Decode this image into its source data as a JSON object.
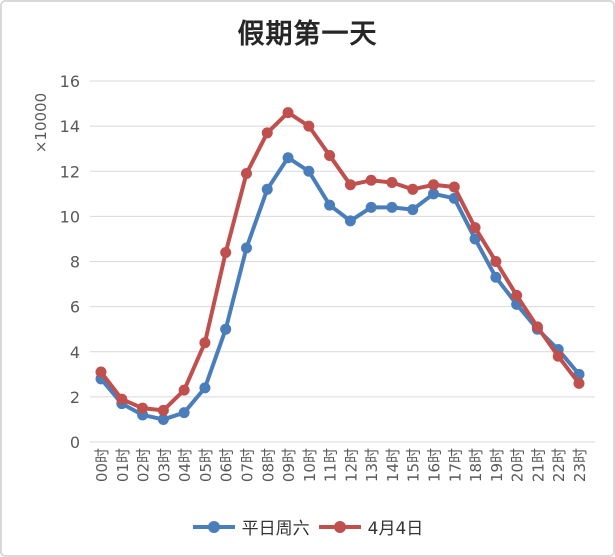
{
  "title": "假期第一天",
  "colors": {
    "frame_border": "#d9d9d9",
    "gridline": "#d9d9d9",
    "axis_text": "#595959",
    "title_text": "#262626",
    "legend_text": "#333333",
    "series_blue": "#4a7ebb",
    "series_red": "#c0504d"
  },
  "chart_data": {
    "type": "line",
    "title": "假期第一天",
    "xlabel": "",
    "ylabel": "×10000",
    "ylim": [
      0,
      16
    ],
    "ytick_step": 2,
    "grid": true,
    "legend_position": "bottom",
    "marker": "circle",
    "categories": [
      "00时",
      "01时",
      "02时",
      "03时",
      "04时",
      "05时",
      "06时",
      "07时",
      "08时",
      "09时",
      "10时",
      "11时",
      "12时",
      "13时",
      "14时",
      "15时",
      "16时",
      "17时",
      "18时",
      "19时",
      "20时",
      "21时",
      "22时",
      "23时"
    ],
    "series": [
      {
        "name": "平日周六",
        "slug": "weekday-saturday",
        "color": "#4a7ebb",
        "values": [
          2.8,
          1.7,
          1.2,
          1.0,
          1.3,
          2.4,
          5.0,
          8.6,
          11.2,
          12.6,
          12.0,
          10.5,
          9.8,
          10.4,
          10.4,
          10.3,
          11.0,
          10.8,
          9.0,
          7.3,
          6.1,
          5.0,
          4.1,
          3.0
        ]
      },
      {
        "name": "4月4日",
        "slug": "april-4th",
        "color": "#c0504d",
        "values": [
          3.1,
          1.9,
          1.5,
          1.4,
          2.3,
          4.4,
          8.4,
          11.9,
          13.7,
          14.6,
          14.0,
          12.7,
          11.4,
          11.6,
          11.5,
          11.2,
          11.4,
          11.3,
          9.5,
          8.0,
          6.5,
          5.1,
          3.8,
          2.6
        ]
      }
    ]
  }
}
